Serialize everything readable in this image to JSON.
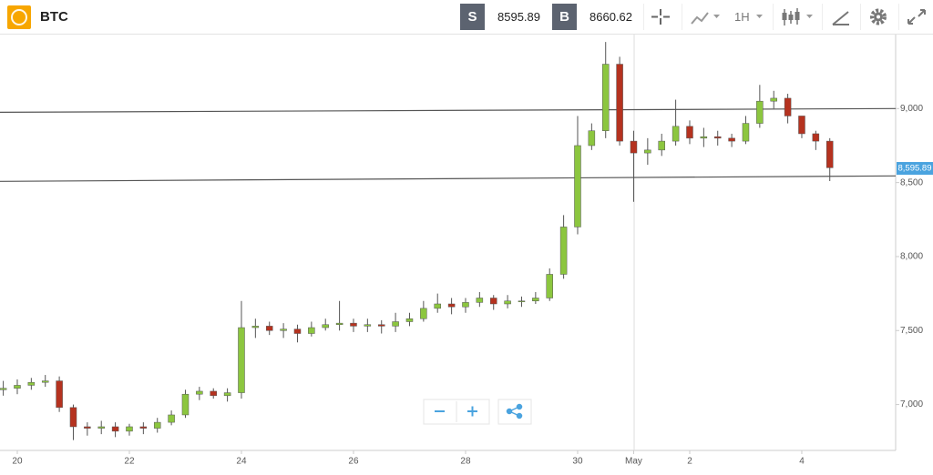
{
  "toolbar": {
    "symbol": "BTC",
    "sell_label": "S",
    "sell_price": "8595.89",
    "buy_label": "B",
    "buy_price": "8660.62",
    "interval": "1H"
  },
  "chart_data": {
    "type": "candlestick",
    "categories": [
      null,
      "20",
      null,
      null,
      null,
      null,
      null,
      null,
      null,
      "22",
      null,
      null,
      null,
      null,
      null,
      null,
      null,
      "24",
      null,
      null,
      null,
      null,
      null,
      null,
      null,
      "26",
      null,
      null,
      null,
      null,
      null,
      null,
      null,
      "28",
      null,
      null,
      null,
      null,
      null,
      null,
      null,
      "30",
      null,
      null,
      null,
      "May",
      null,
      null,
      null,
      "2",
      null,
      null,
      null,
      null,
      null,
      null,
      null,
      "4",
      null,
      null
    ],
    "open": [
      7100,
      7110,
      7130,
      7150,
      7160,
      6980,
      6850,
      6840,
      6850,
      6820,
      6850,
      6840,
      6880,
      6930,
      7070,
      7090,
      7060,
      7080,
      7520,
      7530,
      7500,
      7510,
      7480,
      7520,
      7540,
      7550,
      7530,
      7540,
      7530,
      7560,
      7580,
      7650,
      7680,
      7660,
      7690,
      7720,
      7680,
      7700,
      7700,
      7720,
      7880,
      8200,
      8750,
      8850,
      9300,
      8780,
      8700,
      8720,
      8780,
      8880,
      8800,
      8810,
      8800,
      8780,
      8900,
      9050,
      9070,
      8950,
      8830,
      8780
    ],
    "high": [
      7160,
      7170,
      7180,
      7200,
      7190,
      7000,
      6880,
      6890,
      6880,
      6870,
      6880,
      6910,
      6960,
      7100,
      7120,
      7110,
      7110,
      7700,
      7580,
      7560,
      7550,
      7540,
      7560,
      7580,
      7700,
      7580,
      7580,
      7570,
      7620,
      7620,
      7700,
      7750,
      7720,
      7720,
      7760,
      7740,
      7740,
      7730,
      7760,
      7920,
      8280,
      8950,
      8900,
      9450,
      9350,
      8850,
      8800,
      8830,
      9060,
      8920,
      8870,
      8850,
      8830,
      8950,
      9160,
      9120,
      9100,
      8950,
      8850,
      8800
    ],
    "low": [
      7060,
      7070,
      7100,
      7120,
      6950,
      6760,
      6790,
      6800,
      6780,
      6790,
      6800,
      6810,
      6860,
      6910,
      7030,
      7040,
      7020,
      7040,
      7450,
      7470,
      7450,
      7420,
      7460,
      7500,
      7500,
      7490,
      7490,
      7480,
      7490,
      7530,
      7560,
      7620,
      7610,
      7620,
      7660,
      7640,
      7650,
      7660,
      7680,
      7700,
      7850,
      8150,
      8720,
      8800,
      8750,
      8370,
      8620,
      8680,
      8750,
      8760,
      8740,
      8750,
      8740,
      8760,
      8870,
      9000,
      8900,
      8800,
      8720,
      8510
    ],
    "close": [
      7110,
      7130,
      7150,
      7160,
      6980,
      6850,
      6840,
      6850,
      6820,
      6850,
      6840,
      6880,
      6930,
      7070,
      7090,
      7060,
      7080,
      7520,
      7530,
      7500,
      7510,
      7480,
      7520,
      7540,
      7550,
      7530,
      7540,
      7530,
      7560,
      7580,
      7650,
      7680,
      7660,
      7690,
      7720,
      7680,
      7700,
      7700,
      7720,
      7880,
      8200,
      8750,
      8850,
      9300,
      8780,
      8700,
      8720,
      8780,
      8880,
      8800,
      8810,
      8800,
      8780,
      8900,
      9050,
      9070,
      8950,
      8830,
      8780,
      8600
    ],
    "up_color": "#8cc63f",
    "down_color": "#b5321f",
    "ylim": [
      6690,
      9500
    ],
    "yticks": [
      {
        "value": 7000,
        "label": "7,000"
      },
      {
        "value": 7500,
        "label": "7,500"
      },
      {
        "value": 8000,
        "label": "8,000"
      },
      {
        "value": 8500,
        "label": "8,500"
      },
      {
        "value": 9000,
        "label": "9,000"
      }
    ],
    "trend_lines": [
      {
        "start": 8975,
        "end": 9000
      },
      {
        "start": 8508,
        "end": 8545
      }
    ],
    "last_price": {
      "value": 8595.89,
      "label": "8,595.89"
    },
    "last_price_color": "#4aa3df"
  }
}
